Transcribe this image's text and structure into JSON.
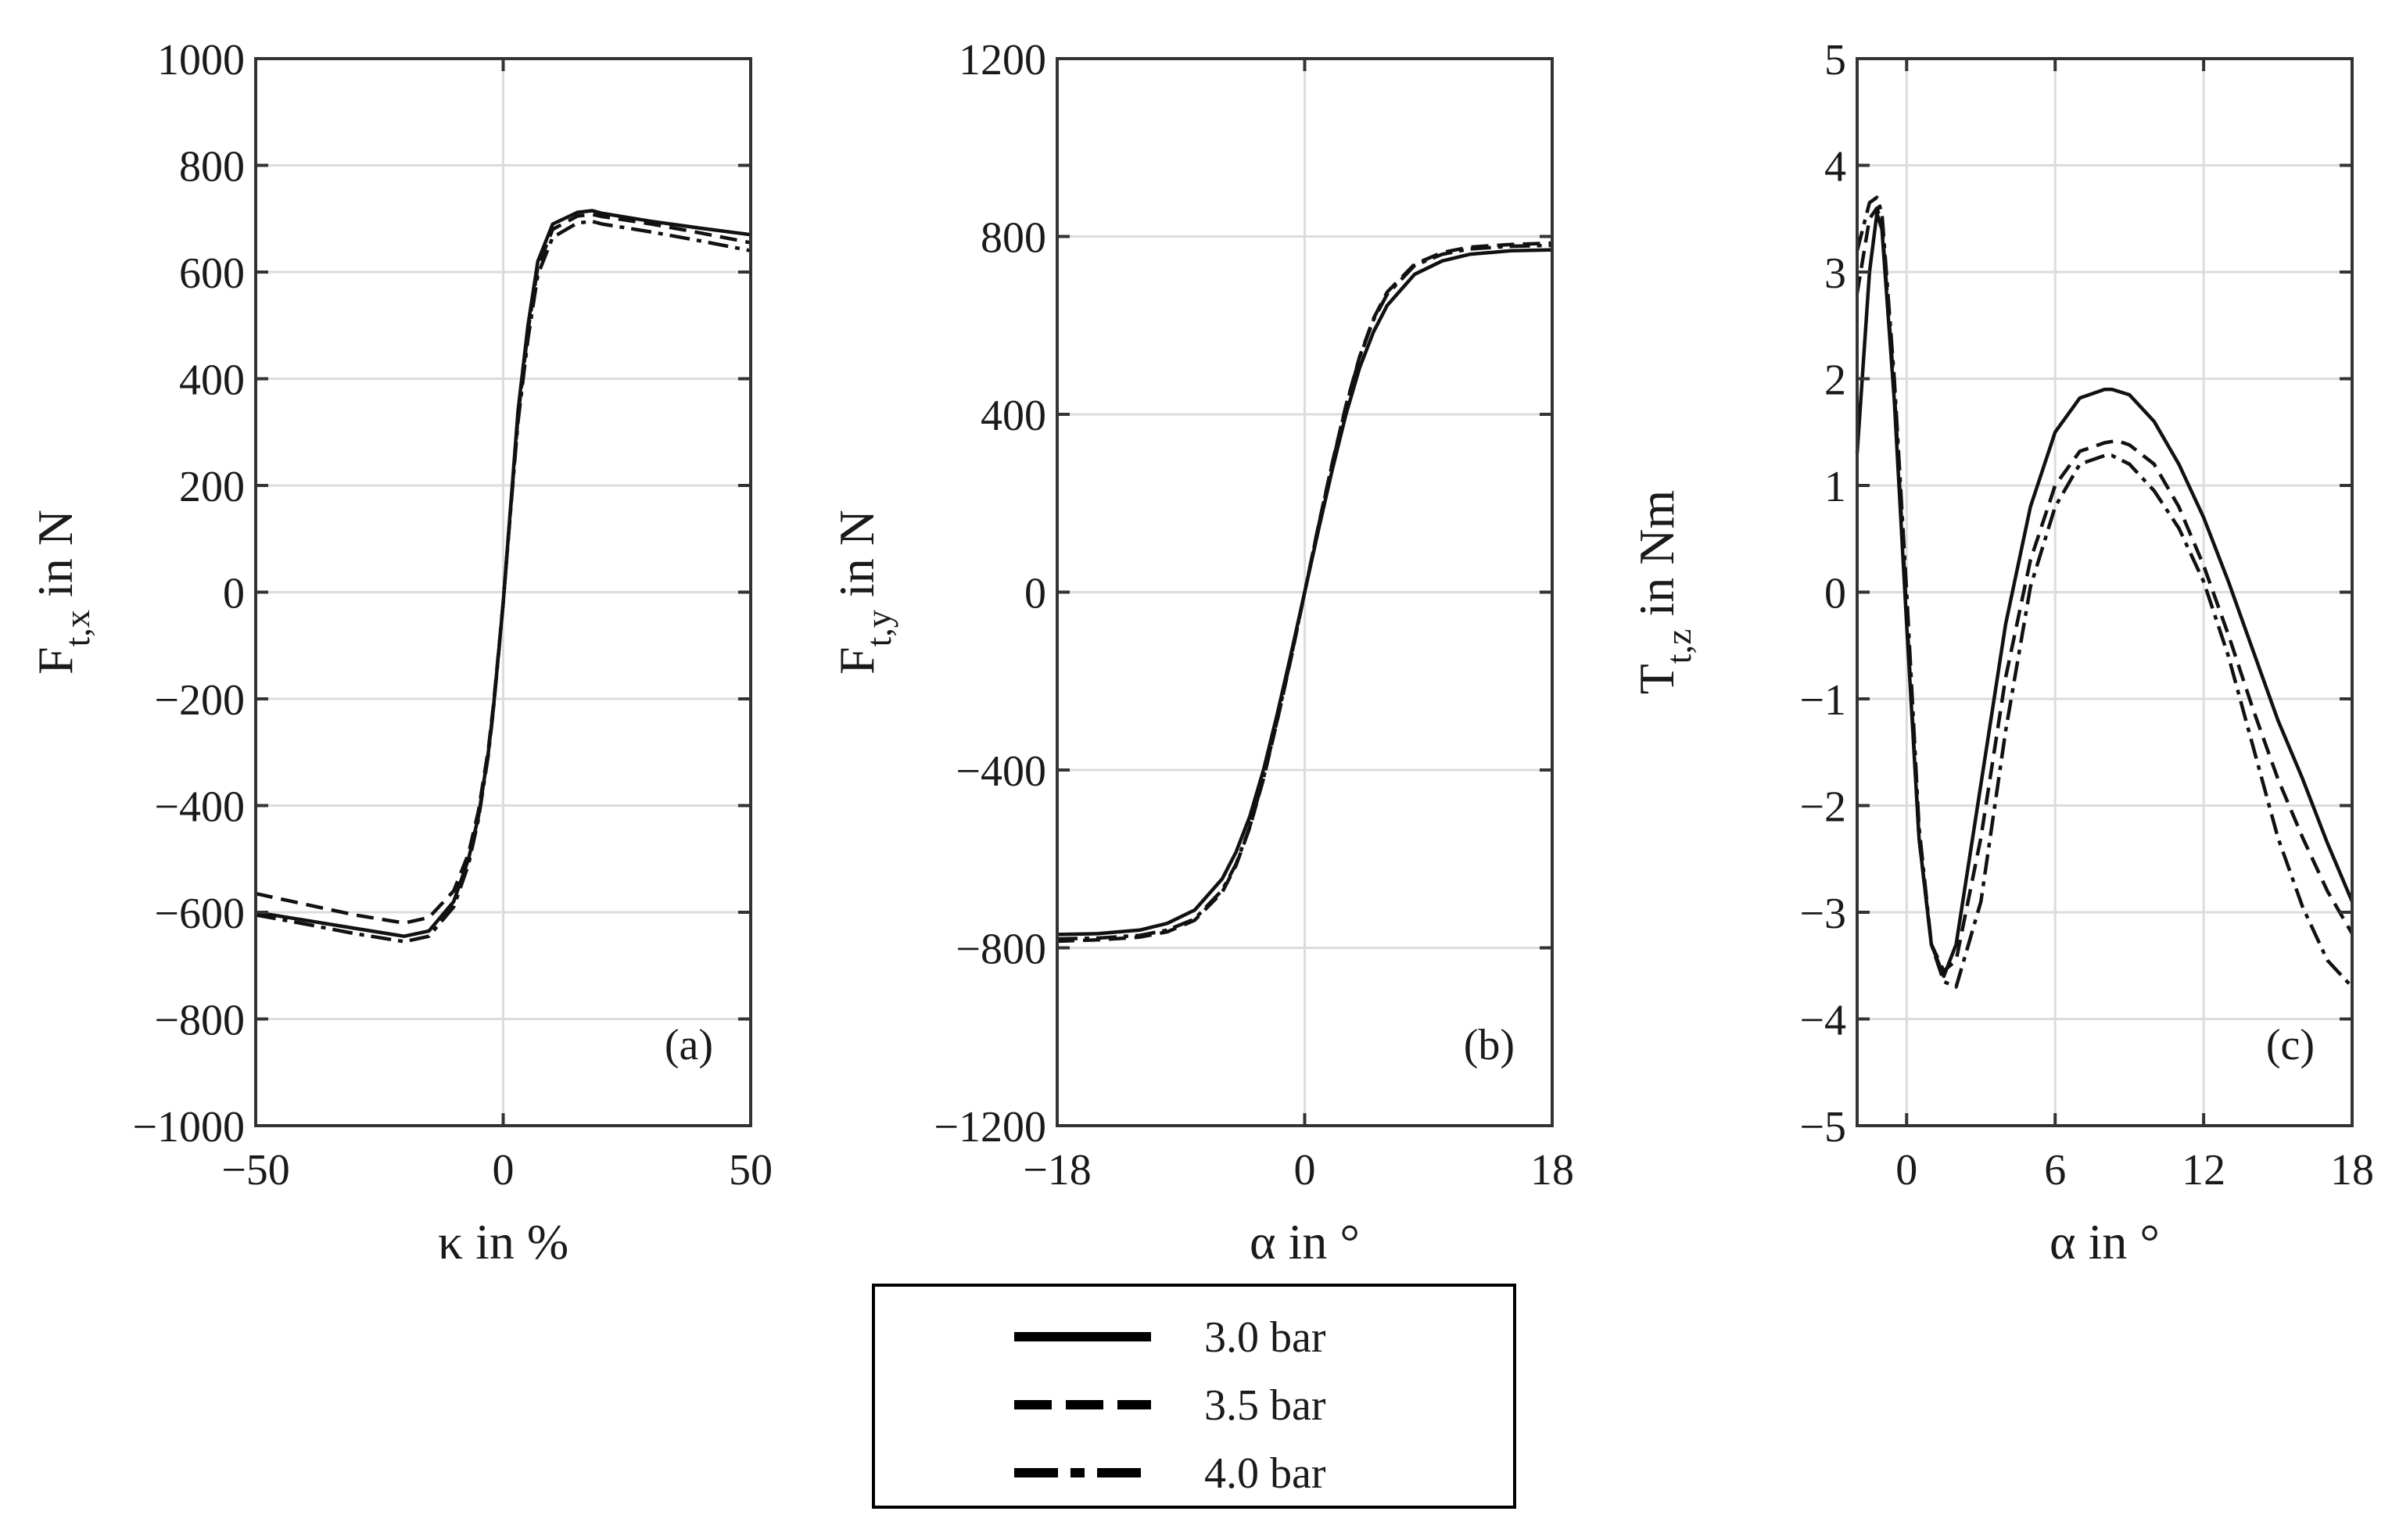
{
  "legend": {
    "entries": [
      {
        "label": "3.0 bar",
        "style": "solid"
      },
      {
        "label": "3.5 bar",
        "style": "dashed"
      },
      {
        "label": "4.0 bar",
        "style": "dashdot"
      }
    ]
  },
  "chart_data": [
    {
      "type": "line",
      "panel_label": "(a)",
      "xlabel": "κ in %",
      "ylabel": "F",
      "ylabel_sub": "t,x",
      "ylabel_unit": " in N",
      "xlim": [
        -50,
        50
      ],
      "ylim": [
        -1000,
        1000
      ],
      "xticks": [
        -50,
        0,
        50
      ],
      "xtick_labels": [
        "−50",
        "0",
        "50"
      ],
      "yticks": [
        -1000,
        -800,
        -600,
        -400,
        -200,
        0,
        200,
        400,
        600,
        800,
        1000
      ],
      "ytick_labels": [
        "−1000",
        "−800",
        "−600",
        "−400",
        "−200",
        "0",
        "200",
        "400",
        "600",
        "800",
        "1000"
      ],
      "grid": true,
      "series": [
        {
          "name": "3.0 bar",
          "x": [
            -50,
            -40,
            -30,
            -20,
            -15,
            -10,
            -7,
            -5,
            -3,
            -2,
            -1,
            0,
            1,
            2,
            3,
            5,
            7,
            10,
            15,
            18,
            20,
            30,
            40,
            50
          ],
          "y": [
            -600,
            -615,
            -630,
            -645,
            -635,
            -580,
            -500,
            -420,
            -300,
            -220,
            -120,
            -20,
            100,
            220,
            340,
            500,
            620,
            690,
            712,
            715,
            710,
            695,
            682,
            670
          ]
        },
        {
          "name": "3.5 bar",
          "x": [
            -50,
            -40,
            -30,
            -20,
            -15,
            -10,
            -7,
            -5,
            -3,
            -2,
            -1,
            0,
            1,
            2,
            3,
            5,
            7,
            10,
            15,
            18,
            20,
            30,
            40,
            50
          ],
          "y": [
            -565,
            -585,
            -605,
            -620,
            -610,
            -560,
            -490,
            -410,
            -295,
            -215,
            -118,
            -20,
            98,
            215,
            330,
            490,
            610,
            680,
            705,
            708,
            704,
            690,
            673,
            655
          ]
        },
        {
          "name": "4.0 bar",
          "x": [
            -50,
            -40,
            -30,
            -20,
            -15,
            -10,
            -7,
            -5,
            -3,
            -2,
            -1,
            0,
            1,
            2,
            3,
            5,
            7,
            10,
            15,
            18,
            20,
            30,
            40,
            50
          ],
          "y": [
            -605,
            -622,
            -640,
            -655,
            -645,
            -590,
            -510,
            -425,
            -305,
            -222,
            -122,
            -20,
            96,
            210,
            320,
            475,
            595,
            665,
            692,
            695,
            690,
            675,
            658,
            640
          ]
        }
      ]
    },
    {
      "type": "line",
      "panel_label": "(b)",
      "xlabel": "α in °",
      "ylabel": "F",
      "ylabel_sub": "t,y",
      "ylabel_unit": " in N",
      "xlim": [
        -18,
        18
      ],
      "ylim": [
        -1200,
        1200
      ],
      "xticks": [
        -18,
        0,
        18
      ],
      "xtick_labels": [
        "−18",
        "0",
        "18"
      ],
      "yticks": [
        -1200,
        -800,
        -400,
        0,
        400,
        800,
        1200
      ],
      "ytick_labels": [
        "−1200",
        "−800",
        "−400",
        "0",
        "400",
        "800",
        "1200"
      ],
      "grid": true,
      "series": [
        {
          "name": "3.0 bar",
          "x": [
            -18,
            -15,
            -12,
            -10,
            -8,
            -6,
            -5,
            -4,
            -3,
            -2,
            -1,
            0,
            1,
            2,
            3,
            4,
            5,
            6,
            8,
            10,
            12,
            15,
            18
          ],
          "y": [
            -770,
            -768,
            -760,
            -745,
            -715,
            -645,
            -585,
            -505,
            -400,
            -275,
            -140,
            0,
            140,
            275,
            400,
            505,
            585,
            645,
            715,
            745,
            760,
            768,
            770
          ]
        },
        {
          "name": "3.5 bar",
          "x": [
            -18,
            -15,
            -12,
            -10,
            -8,
            -6,
            -5,
            -4,
            -3,
            -2,
            -1,
            0,
            1,
            2,
            3,
            4,
            5,
            6,
            8,
            10,
            12,
            15,
            18
          ],
          "y": [
            -785,
            -782,
            -776,
            -764,
            -738,
            -675,
            -615,
            -530,
            -420,
            -290,
            -150,
            0,
            150,
            290,
            420,
            530,
            615,
            675,
            738,
            764,
            776,
            782,
            785
          ]
        },
        {
          "name": "4.0 bar",
          "x": [
            -18,
            -15,
            -12,
            -10,
            -8,
            -6,
            -5,
            -4,
            -3,
            -2,
            -1,
            0,
            1,
            2,
            3,
            4,
            5,
            6,
            8,
            10,
            12,
            15,
            18
          ],
          "y": [
            -780,
            -778,
            -772,
            -760,
            -735,
            -670,
            -612,
            -528,
            -418,
            -288,
            -148,
            0,
            148,
            288,
            418,
            528,
            612,
            670,
            735,
            760,
            772,
            778,
            780
          ]
        }
      ]
    },
    {
      "type": "line",
      "panel_label": "(c)",
      "xlabel": "α in °",
      "ylabel": "T",
      "ylabel_sub": "t,z",
      "ylabel_unit": " in Nm",
      "xlim": [
        -2,
        18
      ],
      "ylim": [
        -5,
        5
      ],
      "xticks": [
        0,
        6,
        12,
        18
      ],
      "xtick_labels": [
        "0",
        "6",
        "12",
        "18"
      ],
      "yticks": [
        -5,
        -4,
        -3,
        -2,
        -1,
        0,
        1,
        2,
        3,
        4,
        5
      ],
      "ytick_labels": [
        "−5",
        "−4",
        "−3",
        "−2",
        "−1",
        "0",
        "1",
        "2",
        "3",
        "4",
        "5"
      ],
      "grid": true,
      "series": [
        {
          "name": "3.0 bar",
          "x": [
            -2,
            -1.5,
            -1.2,
            -1,
            -0.5,
            0,
            0.5,
            1,
            1.5,
            2,
            3,
            4,
            5,
            6,
            7,
            8,
            8.3,
            9,
            10,
            11,
            12,
            13,
            14,
            15,
            16,
            17,
            18
          ],
          "y": [
            1.3,
            3.0,
            3.55,
            3.4,
            1.8,
            -0.3,
            -2.3,
            -3.3,
            -3.6,
            -3.3,
            -1.8,
            -0.3,
            0.8,
            1.5,
            1.82,
            1.9,
            1.9,
            1.85,
            1.6,
            1.2,
            0.7,
            0.1,
            -0.55,
            -1.2,
            -1.75,
            -2.35,
            -2.9
          ]
        },
        {
          "name": "3.5 bar",
          "x": [
            -2,
            -1.5,
            -1.2,
            -1,
            -0.5,
            0,
            0.5,
            1,
            1.5,
            2,
            3,
            4,
            5,
            6,
            7,
            8,
            8.5,
            9,
            10,
            11,
            12,
            13,
            14,
            15,
            16,
            17,
            18
          ],
          "y": [
            2.8,
            3.5,
            3.6,
            3.45,
            1.9,
            -0.2,
            -2.3,
            -3.3,
            -3.55,
            -3.45,
            -2.3,
            -0.8,
            0.3,
            1.0,
            1.32,
            1.4,
            1.42,
            1.38,
            1.2,
            0.8,
            0.25,
            -0.4,
            -1.1,
            -1.75,
            -2.3,
            -2.8,
            -3.2
          ]
        },
        {
          "name": "4.0 bar",
          "x": [
            -2,
            -1.5,
            -1.2,
            -1,
            -0.5,
            0,
            0.5,
            1,
            1.5,
            2,
            3,
            4,
            5,
            6,
            7,
            8,
            8.3,
            9,
            10,
            11,
            12,
            13,
            14,
            15,
            16,
            17,
            18
          ],
          "y": [
            3.2,
            3.65,
            3.7,
            3.55,
            2.0,
            0.0,
            -2.2,
            -3.3,
            -3.65,
            -3.7,
            -2.9,
            -1.3,
            0.05,
            0.8,
            1.2,
            1.28,
            1.28,
            1.2,
            0.95,
            0.6,
            0.1,
            -0.6,
            -1.45,
            -2.3,
            -2.95,
            -3.45,
            -3.7
          ]
        }
      ]
    }
  ]
}
